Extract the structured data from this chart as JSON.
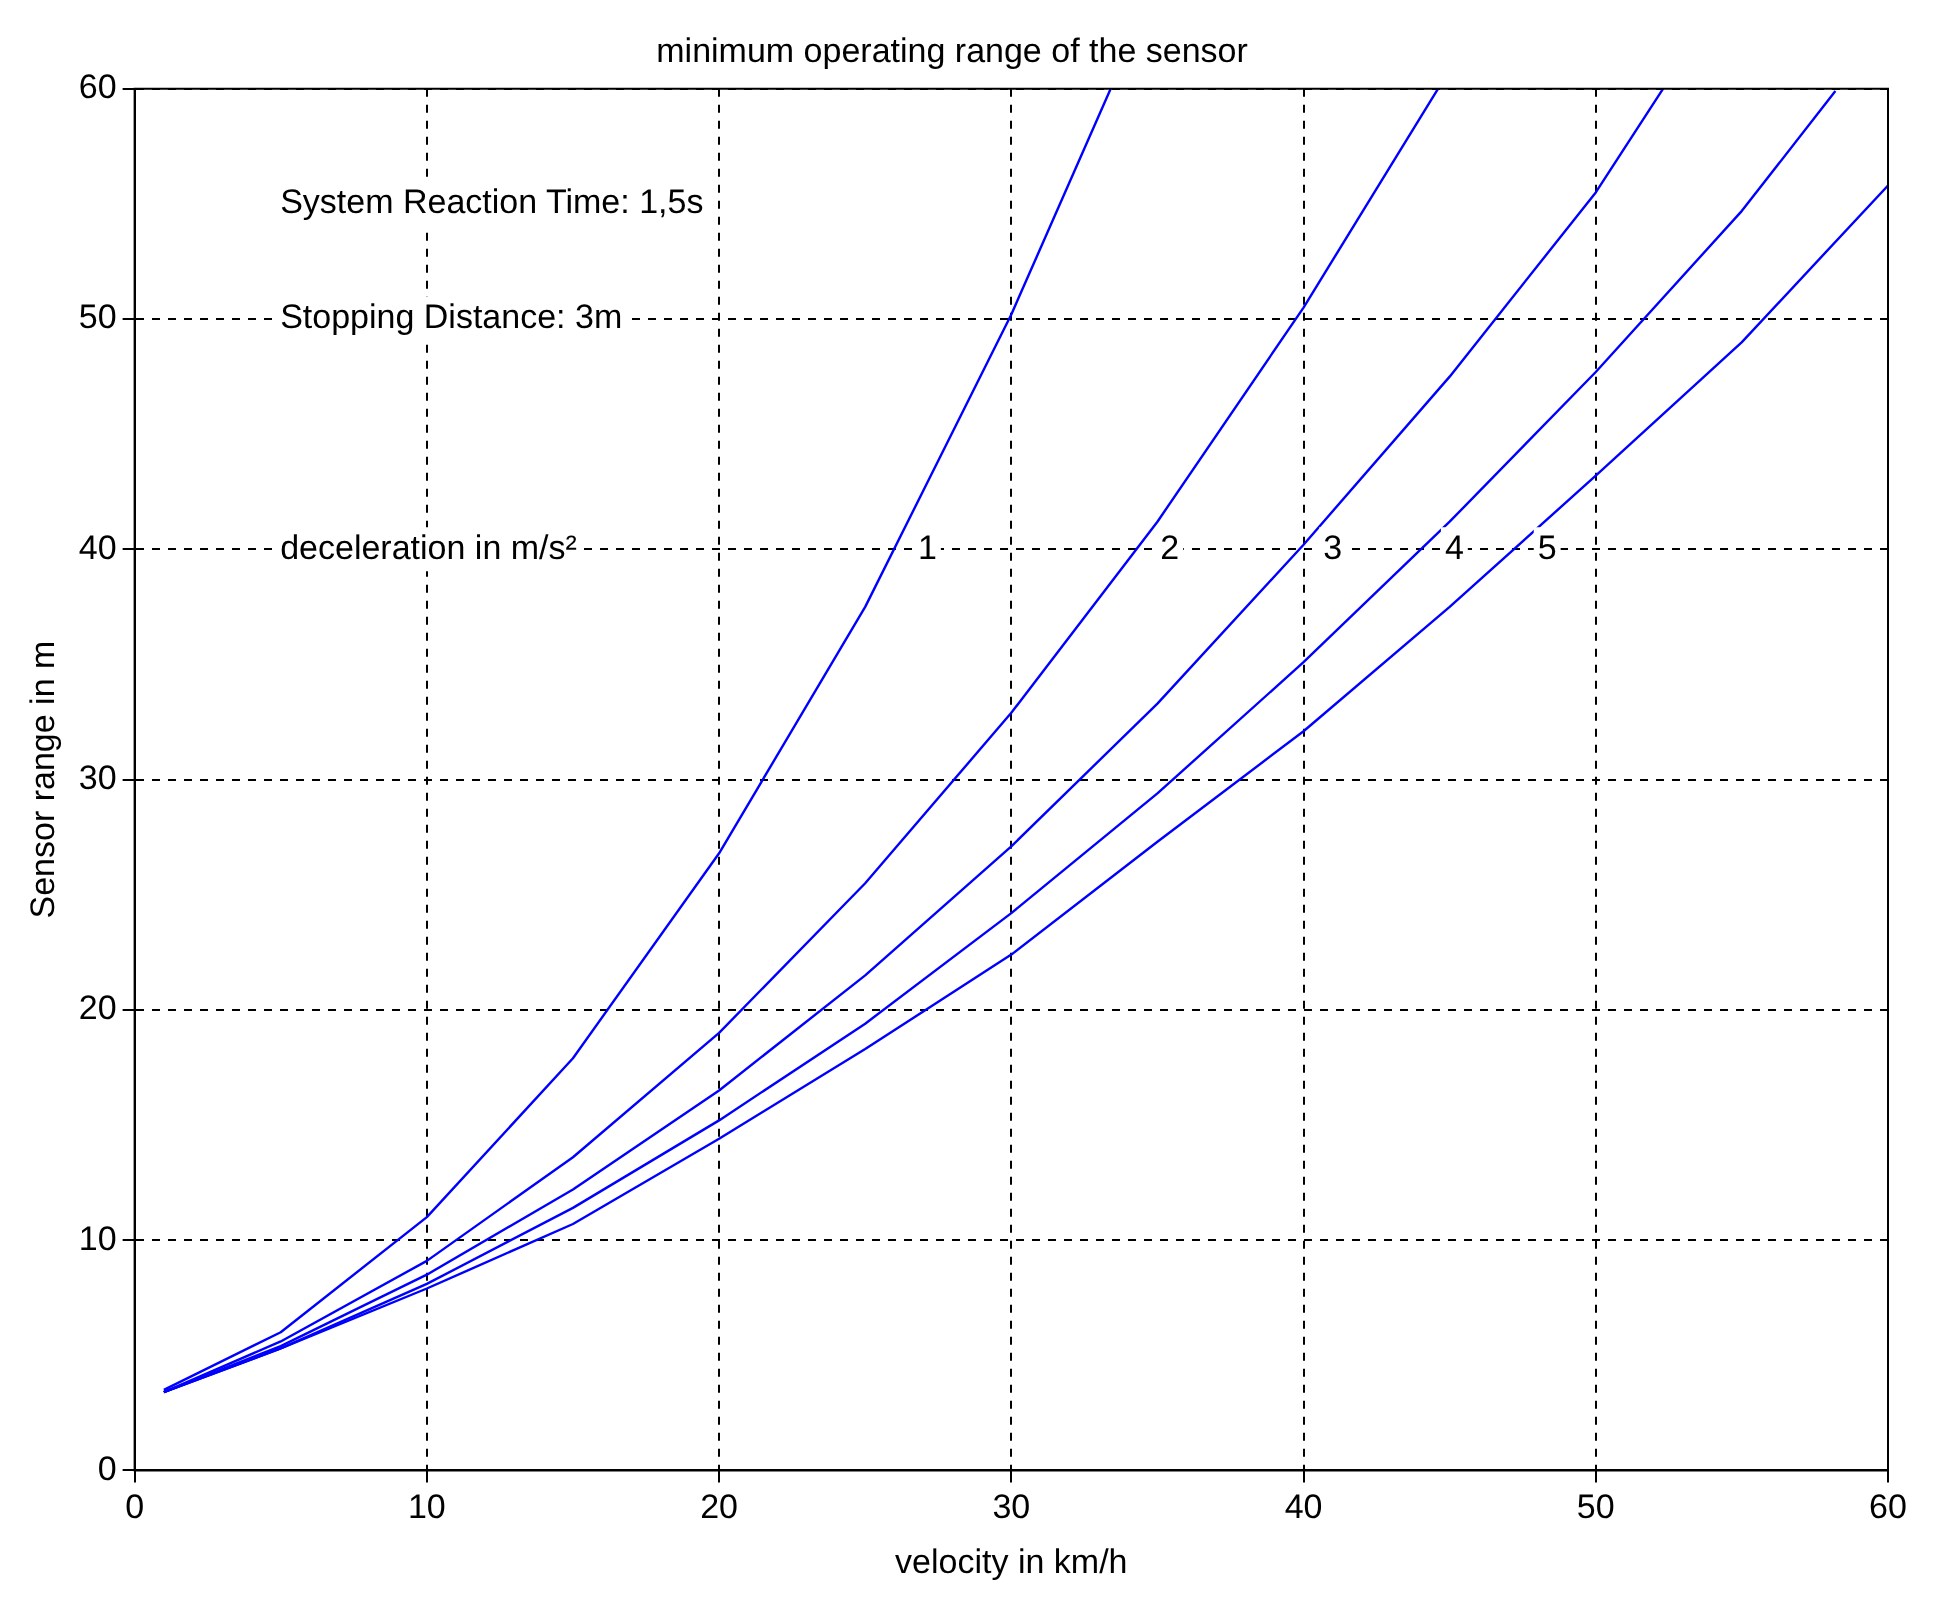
{
  "chart_data": {
    "type": "line",
    "title": "minimum operating range of the sensor",
    "xlabel": "velocity in km/h",
    "ylabel": "Sensor range in m",
    "xlim": [
      0,
      60
    ],
    "xticks": [
      0,
      10,
      20,
      30,
      40,
      50,
      60
    ],
    "ylim": [
      0,
      60
    ],
    "yticks": [
      0,
      10,
      20,
      30,
      40,
      50,
      60
    ],
    "grid": true,
    "marker": "none",
    "line_style": "solid",
    "annotations": [
      "System Reaction Time: 1,5s",
      "Stopping Distance: 3m",
      "deceleration in m/s²"
    ],
    "series": [
      {
        "name": "1",
        "color": "#0000ff",
        "x": [
          1,
          5,
          10,
          15,
          20,
          25,
          30,
          33.4
        ],
        "values": [
          3.5,
          6.0,
          11.0,
          17.9,
          26.8,
          37.5,
          50.2,
          60
        ]
      },
      {
        "name": "2",
        "color": "#0000ff",
        "x": [
          1,
          5,
          10,
          15,
          20,
          25,
          30,
          35,
          40,
          44.6
        ],
        "values": [
          3.4,
          5.6,
          9.1,
          13.6,
          19.0,
          25.5,
          32.9,
          41.2,
          50.5,
          60
        ]
      },
      {
        "name": "3",
        "color": "#0000ff",
        "x": [
          1,
          5,
          10,
          15,
          20,
          25,
          30,
          35,
          40,
          45,
          50,
          52.3
        ],
        "values": [
          3.4,
          5.4,
          8.5,
          12.2,
          16.5,
          21.5,
          27.1,
          33.3,
          40.2,
          47.5,
          55.5,
          60
        ]
      },
      {
        "name": "4",
        "color": "#0000ff",
        "x": [
          1,
          5,
          10,
          15,
          20,
          25,
          30,
          35,
          40,
          45,
          50,
          55,
          58.2
        ],
        "values": [
          3.4,
          5.3,
          8.1,
          11.4,
          15.2,
          19.4,
          24.2,
          29.4,
          35.1,
          41.2,
          47.7,
          54.7,
          59.9
        ]
      },
      {
        "name": "5",
        "color": "#0000ff",
        "x": [
          1,
          5,
          10,
          15,
          20,
          25,
          30,
          35,
          40,
          45,
          50,
          55,
          60
        ],
        "values": [
          3.4,
          5.3,
          7.9,
          10.7,
          14.4,
          18.3,
          22.4,
          27.3,
          32.1,
          37.5,
          43.2,
          49.0,
          55.8
        ]
      }
    ]
  }
}
